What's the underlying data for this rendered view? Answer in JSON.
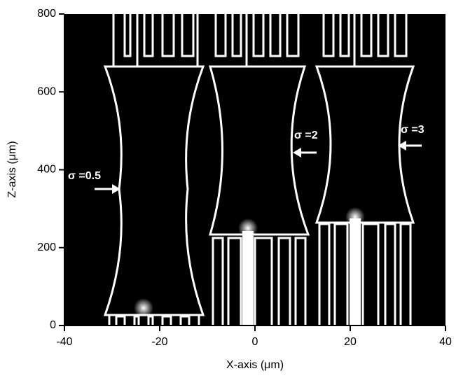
{
  "chart_data": {
    "type": "image",
    "xlabel": "X-axis (μm)",
    "ylabel": "Z-axis (μm)",
    "xlim": [
      -40,
      40
    ],
    "ylim": [
      0,
      800
    ],
    "xticks": [
      -40,
      -20,
      0,
      20,
      40
    ],
    "yticks": [
      0,
      200,
      400,
      600,
      800
    ],
    "annotations": [
      "σ =0.5",
      "σ =2",
      "σ =3"
    ]
  }
}
